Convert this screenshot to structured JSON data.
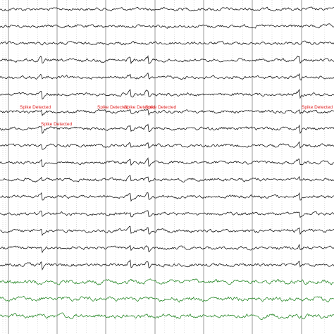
{
  "annotations": [
    {
      "text": "Spike Detected"
    },
    {
      "text": "Spike Detected"
    },
    {
      "text": "Spike Detected"
    },
    {
      "text": "Spike Detected"
    },
    {
      "text": "Spike Detected"
    },
    {
      "text": "Spike Detected"
    }
  ]
}
